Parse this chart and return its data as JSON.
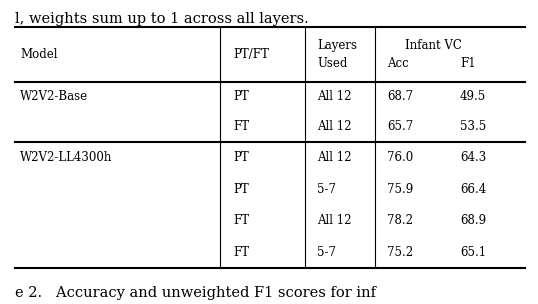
{
  "caption_top": "l, weights sum up to 1 across all layers.",
  "caption_bottom": "e 2.   Accuracy and unweighted F1 scores for inf",
  "rows": [
    [
      "W2V2-Base",
      "PT",
      "All 12",
      "68.7",
      "49.5"
    ],
    [
      "",
      "FT",
      "All 12",
      "65.7",
      "53.5"
    ],
    [
      "W2V2-LL4300h",
      "PT",
      "All 12",
      "76.0",
      "64.3"
    ],
    [
      "",
      "PT",
      "5-7",
      "75.9",
      "66.4"
    ],
    [
      "",
      "FT",
      "All 12",
      "78.2",
      "68.9"
    ],
    [
      "",
      "FT",
      "5-7",
      "75.2",
      "65.1"
    ]
  ],
  "background_color": "#ffffff",
  "text_color": "#000000",
  "font_size": 8.5
}
